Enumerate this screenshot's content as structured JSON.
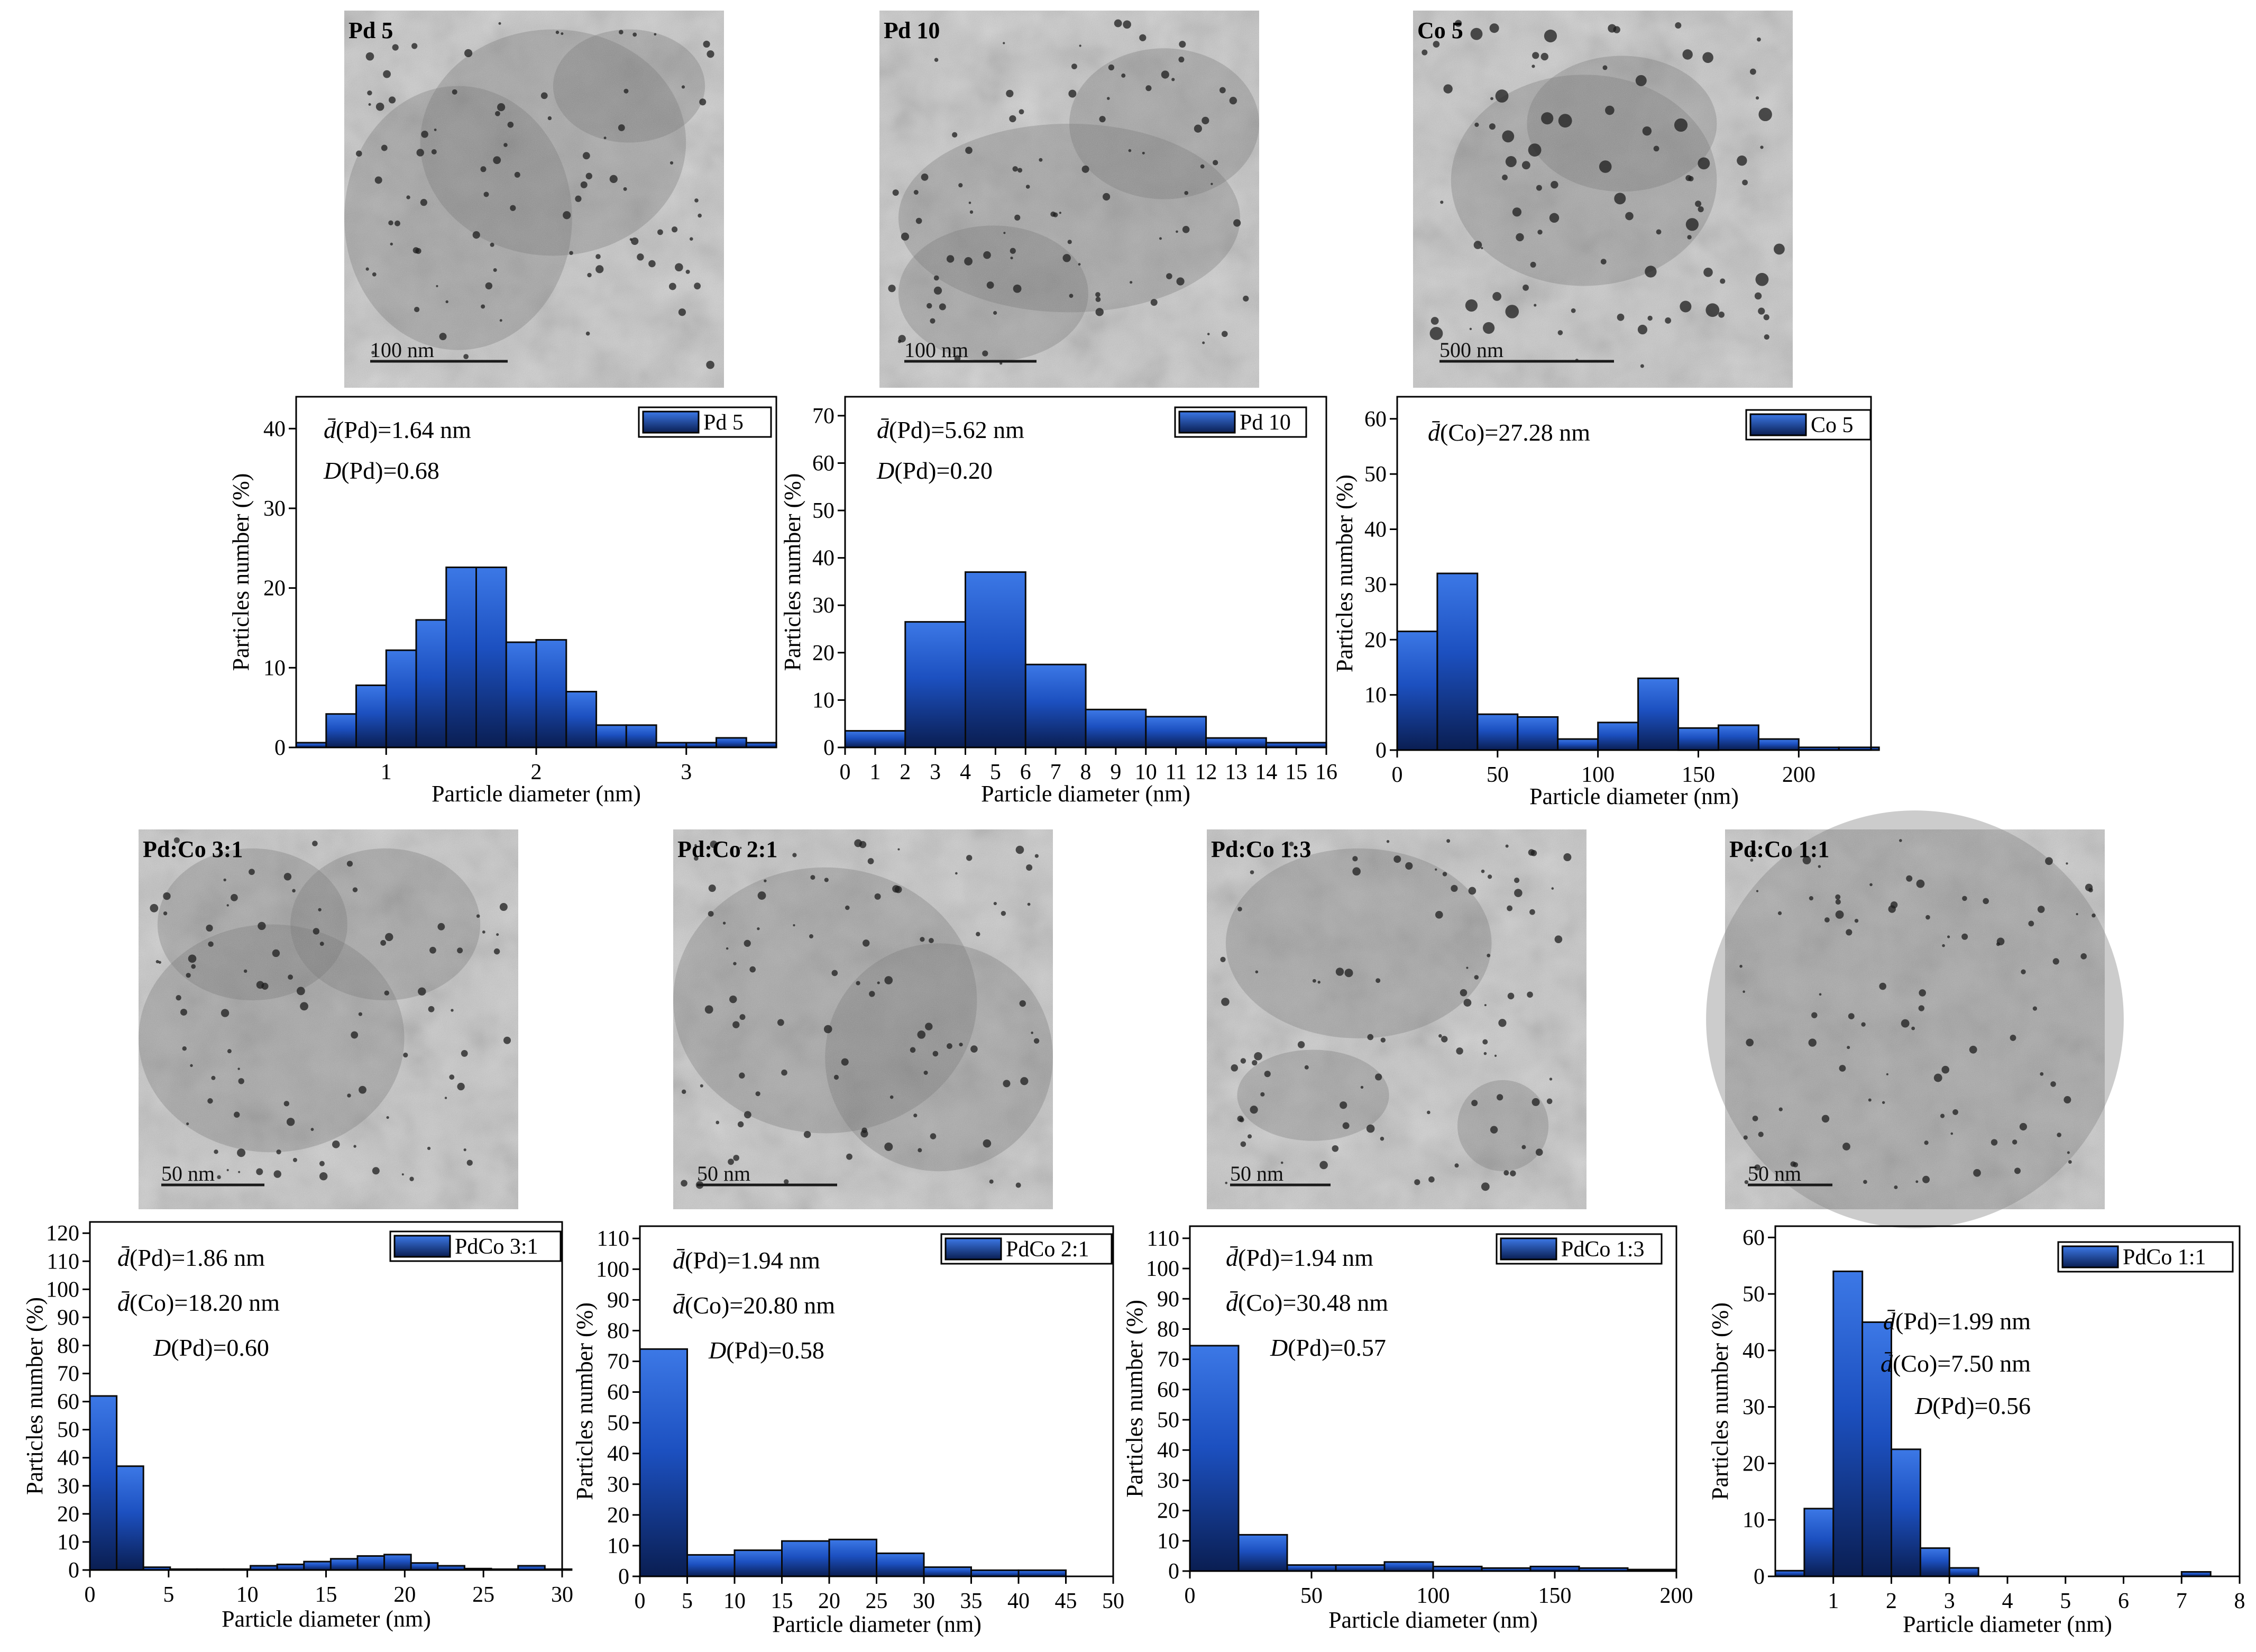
{
  "colors": {
    "bar_top": "#3c78e6",
    "bar_mid": "#1c50c0",
    "bar_bottom": "#0a1e52",
    "tem_background": "#b4b4b4",
    "tem_scalebar": "#1a1a1a"
  },
  "micrographs": [
    {
      "label": "Pd 5",
      "scale_label": "100 nm"
    },
    {
      "label": "Pd 10",
      "scale_label": "100 nm"
    },
    {
      "label": "Co 5",
      "scale_label": "500 nm"
    },
    {
      "label": "Pd:Co 3:1",
      "scale_label": "50 nm"
    },
    {
      "label": "Pd:Co 2:1",
      "scale_label": "50 nm"
    },
    {
      "label": "Pd:Co 1:3",
      "scale_label": "50 nm"
    },
    {
      "label": "Pd:Co 1:1",
      "scale_label": "50 nm"
    }
  ],
  "chart_data": [
    {
      "type": "bar",
      "legend": "Pd 5",
      "xlabel": "Particle diameter (nm)",
      "ylabel": "Particles number (%)",
      "xlim": [
        0.4,
        3.6
      ],
      "ylim": [
        0,
        44
      ],
      "xticks": [
        1,
        2,
        3
      ],
      "xtick_labels": [
        "1",
        "2",
        "3"
      ],
      "yticks": [
        0,
        10,
        20,
        30,
        40
      ],
      "ytick_labels": [
        "0",
        "10",
        "20",
        "30",
        "40"
      ],
      "bin_width": 0.2,
      "bin_starts": [
        0.4,
        0.6,
        0.8,
        1.0,
        1.2,
        1.4,
        1.6,
        1.8,
        2.0,
        2.2,
        2.4,
        2.6,
        2.8,
        3.0,
        3.2,
        3.4
      ],
      "values": [
        0.6,
        4.2,
        7.8,
        12.2,
        16.0,
        22.6,
        22.6,
        13.2,
        13.5,
        7.0,
        2.8,
        2.8,
        0.6,
        0.6,
        1.2,
        0.6
      ],
      "annotations": [
        "d̄(Pd)=1.64 nm",
        "D(Pd)=0.68"
      ]
    },
    {
      "type": "bar",
      "legend": "Pd 10",
      "xlabel": "Particle diameter (nm)",
      "ylabel": "Particles number (%)",
      "xlim": [
        0,
        16
      ],
      "ylim": [
        0,
        74
      ],
      "xticks": [
        0,
        1,
        2,
        3,
        4,
        5,
        6,
        7,
        8,
        9,
        10,
        11,
        12,
        13,
        14,
        15,
        16
      ],
      "xtick_labels": [
        "0",
        "1",
        "2",
        "3",
        "4",
        "5",
        "6",
        "7",
        "8",
        "9",
        "10",
        "11",
        "12",
        "13",
        "14",
        "15",
        "16"
      ],
      "yticks": [
        0,
        10,
        20,
        30,
        40,
        50,
        60,
        70
      ],
      "ytick_labels": [
        "0",
        "10",
        "20",
        "30",
        "40",
        "50",
        "60",
        "70"
      ],
      "bin_width": 2,
      "bin_starts": [
        0,
        2,
        4,
        6,
        8,
        10,
        12,
        14
      ],
      "values": [
        3.5,
        26.5,
        37.0,
        17.5,
        8.0,
        6.5,
        2.0,
        1.0
      ],
      "annotations": [
        "d̄(Pd)=5.62 nm",
        "D(Pd)=0.20"
      ]
    },
    {
      "type": "bar",
      "legend": "Co 5",
      "xlabel": "Particle diameter (nm)",
      "ylabel": "Particles number (%)",
      "xlim": [
        0,
        236
      ],
      "ylim": [
        0,
        64
      ],
      "xticks": [
        0,
        50,
        100,
        150,
        200
      ],
      "xtick_labels": [
        "0",
        "50",
        "100",
        "150",
        "200"
      ],
      "yticks": [
        0,
        10,
        20,
        30,
        40,
        50,
        60
      ],
      "ytick_labels": [
        "0",
        "10",
        "20",
        "30",
        "40",
        "50",
        "60"
      ],
      "bin_width": 20,
      "bin_starts": [
        0,
        20,
        40,
        60,
        80,
        100,
        120,
        140,
        160,
        180,
        200,
        220
      ],
      "values": [
        21.5,
        32.0,
        6.5,
        6.0,
        2.0,
        5.0,
        13.0,
        4.0,
        4.5,
        2.0,
        0.5,
        0.5
      ],
      "annotations": [
        "d̄(Co)=27.28 nm"
      ]
    },
    {
      "type": "bar",
      "legend": "PdCo 3:1",
      "xlabel": "Particle diameter (nm)",
      "ylabel": "Particles number (%)",
      "xlim": [
        0,
        30
      ],
      "ylim": [
        0,
        124
      ],
      "xticks": [
        0,
        5,
        10,
        15,
        20,
        25,
        30
      ],
      "xtick_labels": [
        "0",
        "5",
        "10",
        "15",
        "20",
        "25",
        "30"
      ],
      "yticks": [
        0,
        10,
        20,
        30,
        40,
        50,
        60,
        70,
        80,
        90,
        100,
        110,
        120
      ],
      "ytick_labels": [
        "0",
        "10",
        "20",
        "30",
        "40",
        "50",
        "60",
        "70",
        "80",
        "90",
        "100",
        "110",
        "120"
      ],
      "bin_width": 1.7,
      "bin_starts": [
        0,
        1.7,
        3.4,
        5.1,
        6.8,
        8.5,
        10.2,
        11.9,
        13.6,
        15.3,
        17.0,
        18.7,
        20.4,
        22.1,
        23.8,
        25.5,
        27.2,
        28.9
      ],
      "values": [
        62.0,
        37.0,
        1.0,
        0.3,
        0.3,
        0.3,
        1.5,
        2.0,
        3.0,
        4.0,
        5.0,
        5.5,
        2.5,
        1.5,
        0.5,
        0.3,
        1.5,
        0.3
      ],
      "annotations": [
        "d̄(Pd)=1.86 nm",
        "d̄(Co)=18.20 nm",
        "D(Pd)=0.60"
      ]
    },
    {
      "type": "bar",
      "legend": "PdCo 2:1",
      "xlabel": "Particle diameter (nm)",
      "ylabel": "Particles number (%)",
      "xlim": [
        0,
        50
      ],
      "ylim": [
        0,
        114
      ],
      "xticks": [
        0,
        5,
        10,
        15,
        20,
        25,
        30,
        35,
        40,
        45,
        50
      ],
      "xtick_labels": [
        "0",
        "5",
        "10",
        "15",
        "20",
        "25",
        "30",
        "35",
        "40",
        "45",
        "50"
      ],
      "yticks": [
        0,
        10,
        20,
        30,
        40,
        50,
        60,
        70,
        80,
        90,
        100,
        110
      ],
      "ytick_labels": [
        "0",
        "10",
        "20",
        "30",
        "40",
        "50",
        "60",
        "70",
        "80",
        "90",
        "100",
        "110"
      ],
      "bin_width": 5,
      "bin_starts": [
        0,
        5,
        10,
        15,
        20,
        25,
        30,
        35,
        40
      ],
      "values": [
        74.0,
        7.0,
        8.5,
        11.5,
        12.0,
        7.5,
        3.0,
        2.0,
        2.0
      ],
      "annotations": [
        "d̄(Pd)=1.94 nm",
        "d̄(Co)=20.80 nm",
        "D(Pd)=0.58"
      ]
    },
    {
      "type": "bar",
      "legend": "PdCo 1:3",
      "xlabel": "Particle diameter (nm)",
      "ylabel": "Particles number (%)",
      "xlim": [
        0,
        200
      ],
      "ylim": [
        0,
        114
      ],
      "xticks": [
        0,
        50,
        100,
        150,
        200
      ],
      "xtick_labels": [
        "0",
        "50",
        "100",
        "150",
        "200"
      ],
      "yticks": [
        0,
        10,
        20,
        30,
        40,
        50,
        60,
        70,
        80,
        90,
        100,
        110
      ],
      "ytick_labels": [
        "0",
        "10",
        "20",
        "30",
        "40",
        "50",
        "60",
        "70",
        "80",
        "90",
        "100",
        "110"
      ],
      "bin_width": 20,
      "bin_starts": [
        0,
        20,
        40,
        60,
        80,
        100,
        120,
        140,
        160,
        180
      ],
      "values": [
        74.5,
        12.0,
        2.0,
        2.0,
        3.0,
        1.5,
        1.0,
        1.5,
        1.0,
        0.5
      ],
      "annotations": [
        "d̄(Pd)=1.94 nm",
        "d̄(Co)=30.48 nm",
        "D(Pd)=0.57"
      ]
    },
    {
      "type": "bar",
      "legend": "PdCo 1:1",
      "xlabel": "Particle diameter (nm)",
      "ylabel": "Particles number (%)",
      "xlim": [
        0,
        8
      ],
      "ylim": [
        0,
        62
      ],
      "xticks": [
        1,
        2,
        3,
        4,
        5,
        6,
        7,
        8
      ],
      "xtick_labels": [
        "1",
        "2",
        "3",
        "4",
        "5",
        "6",
        "7",
        "8"
      ],
      "yticks": [
        0,
        10,
        20,
        30,
        40,
        50,
        60
      ],
      "ytick_labels": [
        "0",
        "10",
        "20",
        "30",
        "40",
        "50",
        "60"
      ],
      "bin_width": 0.5,
      "bin_starts": [
        0.0,
        0.5,
        1.0,
        1.5,
        2.0,
        2.5,
        3.0,
        7.0
      ],
      "values": [
        1.0,
        12.0,
        54.0,
        45.0,
        22.5,
        5.0,
        1.5,
        0.8
      ],
      "annotations": [
        "d̄(Pd)=1.99 nm",
        "d̄(Co)=7.50 nm",
        "D(Pd)=0.56"
      ]
    }
  ]
}
